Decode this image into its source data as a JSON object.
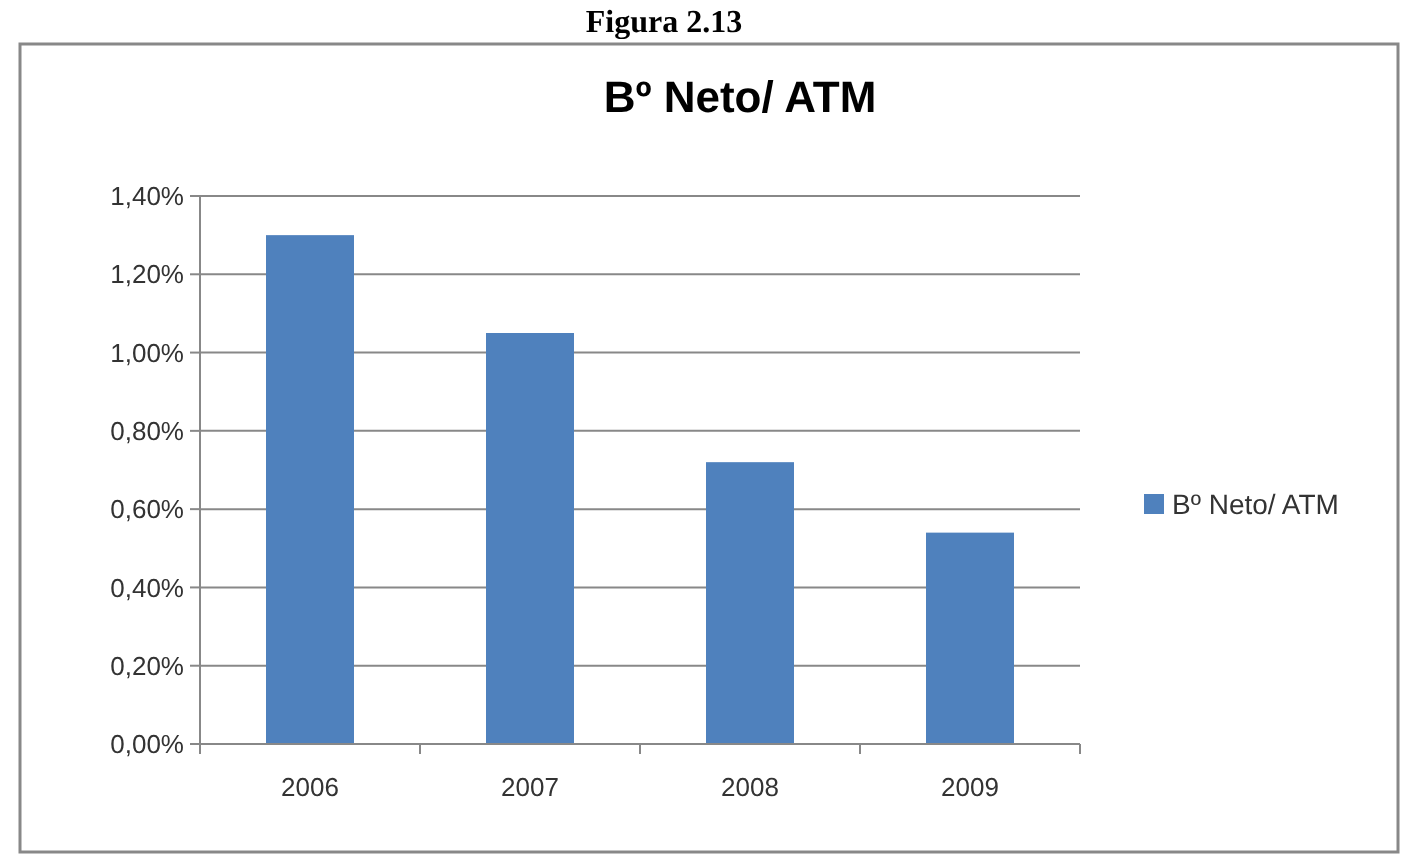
{
  "chart_data": {
    "type": "bar",
    "title": "Bº Neto/ ATM",
    "annotations": [
      "Figura 2.13"
    ],
    "categories": [
      "2006",
      "2007",
      "2008",
      "2009"
    ],
    "series": [
      {
        "name": "Bº Neto/ ATM",
        "color": "#4f81bd",
        "values": [
          1.3,
          1.05,
          0.72,
          0.54
        ]
      }
    ],
    "ylim": [
      0,
      1.4
    ],
    "yticks": [
      {
        "value": 0,
        "label": "0,00%"
      },
      {
        "value": 0.2,
        "label": "0,20%"
      },
      {
        "value": 0.4,
        "label": "0,40%"
      },
      {
        "value": 0.6,
        "label": "0,60%"
      },
      {
        "value": 0.8,
        "label": "0,80%"
      },
      {
        "value": 1.0,
        "label": "1,00%"
      },
      {
        "value": 1.2,
        "label": "1,20%"
      },
      {
        "value": 1.4,
        "label": "1,40%"
      }
    ],
    "grid": "y",
    "legend": "right"
  }
}
